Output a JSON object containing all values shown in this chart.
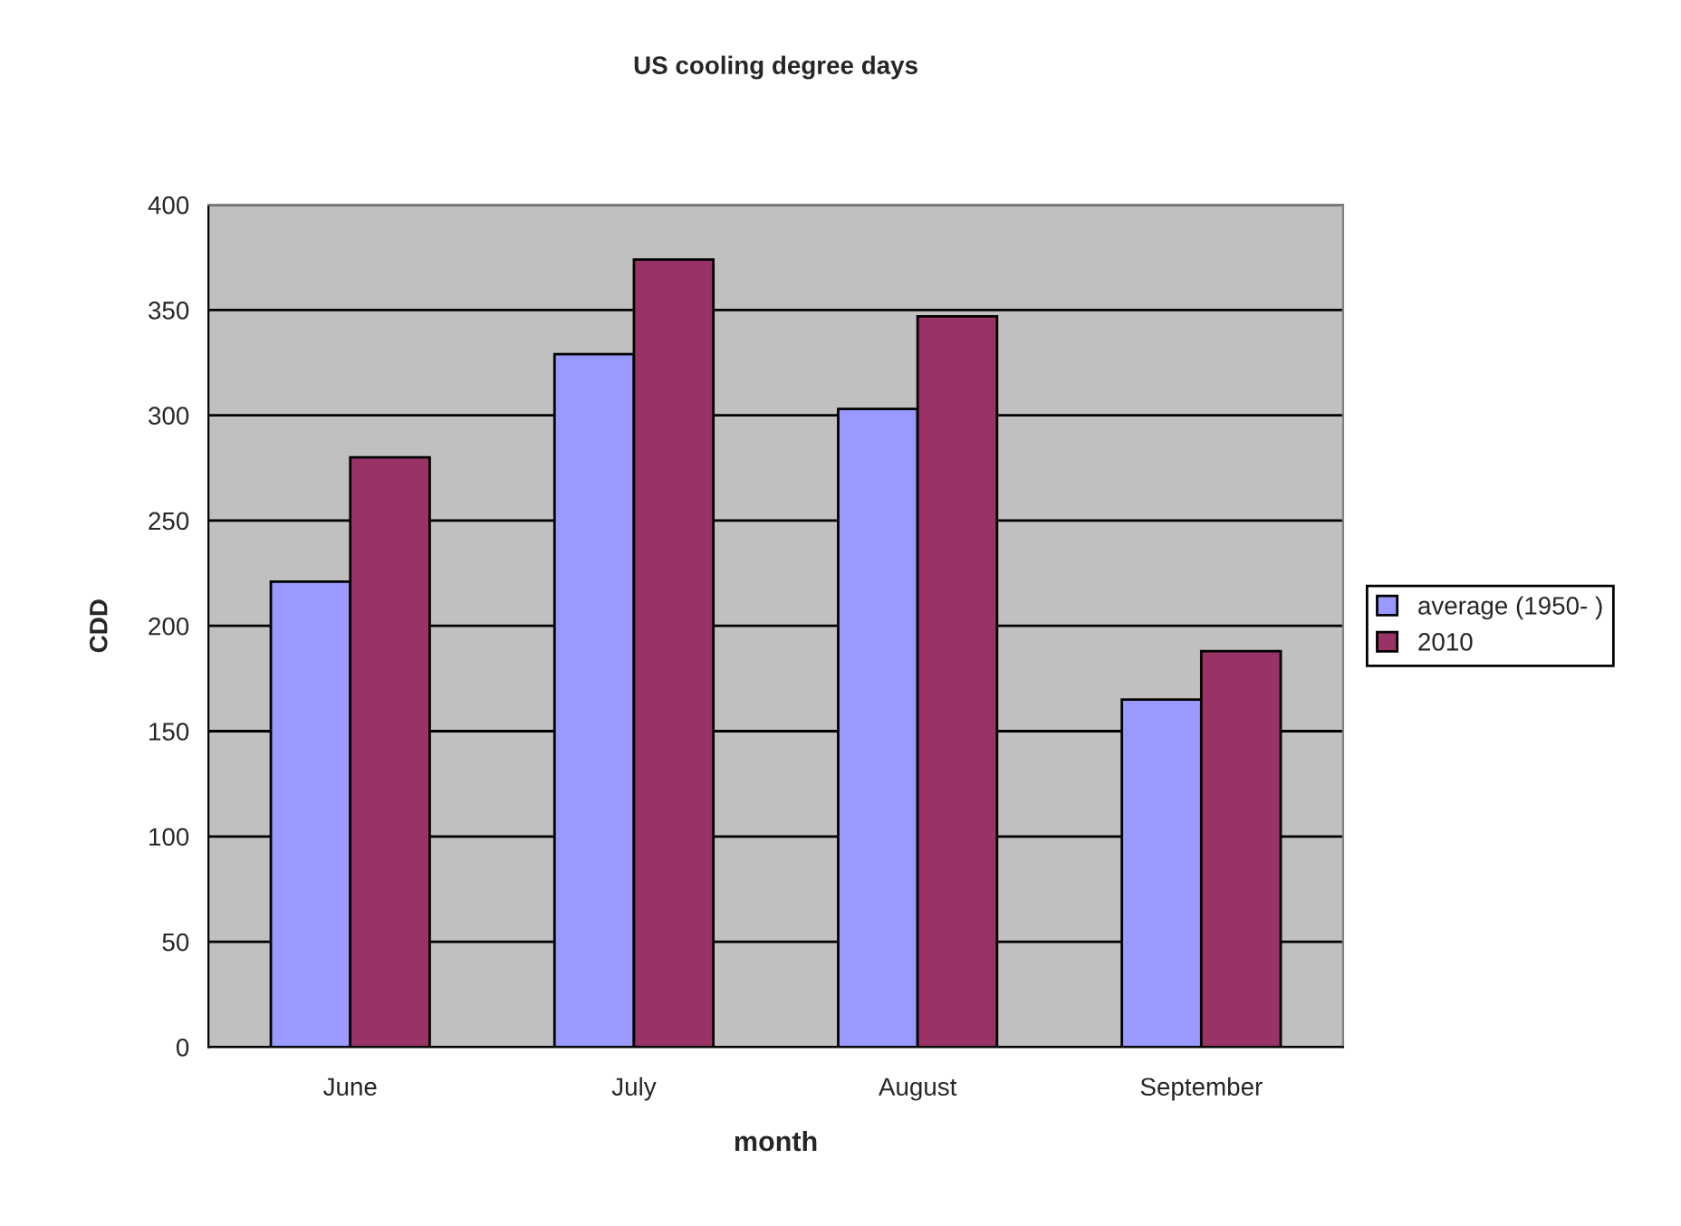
{
  "chart_data": {
    "type": "bar",
    "title": "US cooling degree days",
    "xlabel": "month",
    "ylabel": "CDD",
    "categories": [
      "June",
      "July",
      "August",
      "September"
    ],
    "series": [
      {
        "name": "average (1950- )",
        "color": "#9999ff",
        "values": [
          221,
          329,
          303,
          165
        ]
      },
      {
        "name": "2010",
        "color": "#993366",
        "values": [
          280,
          374,
          347,
          188
        ]
      }
    ],
    "ylim": [
      0,
      400
    ],
    "yticks": [
      0,
      50,
      100,
      150,
      200,
      250,
      300,
      350,
      400
    ],
    "grid": "y",
    "legend": "right"
  }
}
